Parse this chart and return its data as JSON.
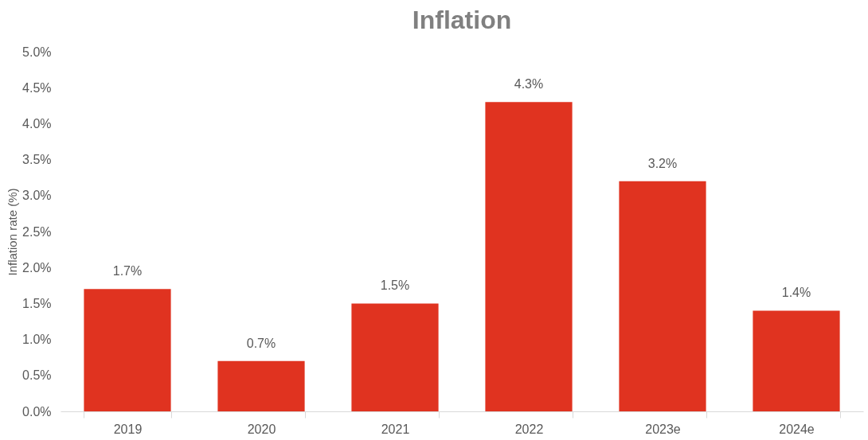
{
  "chart_data": {
    "type": "bar",
    "title": "Inflation",
    "ylabel": "Inflation rate (%)",
    "categories": [
      "2019",
      "2020",
      "2021",
      "2022",
      "2023e",
      "2024e"
    ],
    "values": [
      1.7,
      0.7,
      1.5,
      4.3,
      3.2,
      1.4
    ],
    "value_labels": [
      "1.7%",
      "0.7%",
      "1.5%",
      "4.3%",
      "3.2%",
      "1.4%"
    ],
    "color": "#e03320",
    "ylim": [
      0,
      5
    ],
    "yticks": [
      {
        "value": 0,
        "label": "0.0%"
      },
      {
        "value": 0.5,
        "label": "0.5%"
      },
      {
        "value": 1,
        "label": "1.0%"
      },
      {
        "value": 1.5,
        "label": "1.5%"
      },
      {
        "value": 2,
        "label": "2.0%"
      },
      {
        "value": 2.5,
        "label": "2.5%"
      },
      {
        "value": 3,
        "label": "3.0%"
      },
      {
        "value": 3.5,
        "label": "3.5%"
      },
      {
        "value": 4,
        "label": "4.0%"
      },
      {
        "value": 4.5,
        "label": "4.5%"
      },
      {
        "value": 5,
        "label": "5.0%"
      }
    ],
    "grid": false
  }
}
